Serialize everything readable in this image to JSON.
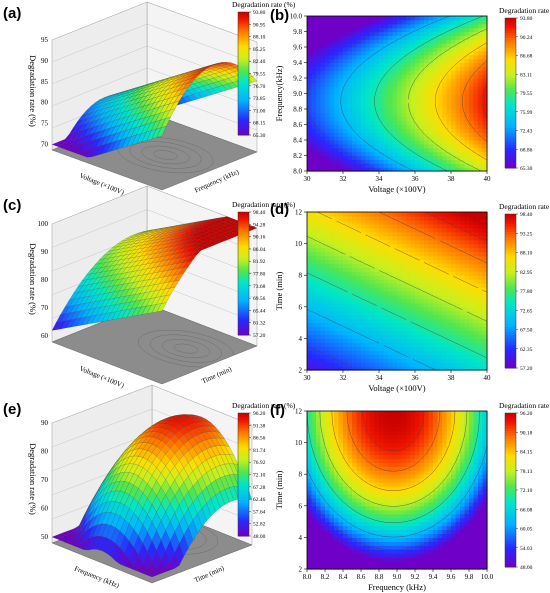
{
  "chart_data": [
    {
      "panel": "(a)",
      "type": "surface3d",
      "xlabel": "Voltage (×100V)",
      "ylabel": "Frequency (kHz)",
      "zlabel": "Degradation rate (%)",
      "zlim": [
        70,
        95
      ],
      "zticks": [
        "70",
        "75",
        "80",
        "85",
        "90",
        "95"
      ],
      "colorbar": {
        "title": "Degradation rate (%)",
        "ticks": [
          "93.80",
          "90.95",
          "88.10",
          "85.25",
          "82.40",
          "79.55",
          "76.70",
          "73.85",
          "71.00",
          "68.15",
          "65.30"
        ]
      }
    },
    {
      "panel": "(b)",
      "type": "contour",
      "xlabel": "Voltage (×100V)",
      "ylabel": "Frequency(kHz)",
      "xlim": [
        30,
        40
      ],
      "ylim": [
        8.0,
        10.0
      ],
      "xticks": [
        "30",
        "32",
        "34",
        "36",
        "38",
        "40"
      ],
      "yticks": [
        "8.0",
        "8.2",
        "8.4",
        "8.6",
        "8.8",
        "9.0",
        "9.2",
        "9.4",
        "9.6",
        "9.8",
        "10.0"
      ],
      "zrange": [
        65.3,
        93.8
      ],
      "colorbar": {
        "title": "Degradation rate (%)",
        "ticks": [
          "93.80",
          "90.24",
          "86.68",
          "83.11",
          "79.55",
          "75.99",
          "72.43",
          "68.86",
          "65.30"
        ]
      }
    },
    {
      "panel": "(c)",
      "type": "surface3d",
      "xlabel": "Voltage (×100V)",
      "ylabel": "Time (min)",
      "zlabel": "Degradation rate (%)",
      "zlim": [
        60,
        100
      ],
      "zticks": [
        "60",
        "70",
        "80",
        "90",
        "100"
      ],
      "colorbar": {
        "title": "Degradation rate (%)",
        "ticks": [
          "98.40",
          "94.28",
          "90.16",
          "86.04",
          "81.92",
          "77.80",
          "73.68",
          "69.56",
          "65.44",
          "61.32",
          "57.20"
        ]
      }
    },
    {
      "panel": "(d)",
      "type": "contour",
      "xlabel": "Voltage (×100V)",
      "ylabel": "Time (min)",
      "xlim": [
        30,
        40
      ],
      "ylim": [
        2,
        12
      ],
      "xticks": [
        "30",
        "32",
        "34",
        "36",
        "38",
        "40"
      ],
      "yticks": [
        "2",
        "4",
        "6",
        "8",
        "10",
        "12"
      ],
      "zrange": [
        57.2,
        98.4
      ],
      "colorbar": {
        "title": "Degradation rate (%)",
        "ticks": [
          "98.40",
          "93.25",
          "88.10",
          "82.95",
          "77.80",
          "72.65",
          "67.50",
          "62.35",
          "57.20"
        ]
      }
    },
    {
      "panel": "(e)",
      "type": "surface3d",
      "xlabel": "Frequency (kHz)",
      "ylabel": "Time (min)",
      "zlabel": "Degradation rate (%)",
      "zlim": [
        50,
        90
      ],
      "zticks": [
        "50",
        "60",
        "70",
        "80",
        "90"
      ],
      "colorbar": {
        "title": "Degradation rate (%)",
        "ticks": [
          "96.20",
          "91.38",
          "86.56",
          "81.74",
          "76.92",
          "72.10",
          "67.28",
          "62.46",
          "57.64",
          "52.82",
          "48.00"
        ]
      }
    },
    {
      "panel": "(f)",
      "type": "contour",
      "xlabel": "Frequency (kHz)",
      "ylabel": "Time (min)",
      "xlim": [
        8.0,
        10.0
      ],
      "ylim": [
        2,
        12
      ],
      "xticks": [
        "8.0",
        "8.2",
        "8.4",
        "8.6",
        "8.8",
        "9.0",
        "9.2",
        "9.4",
        "9.6",
        "9.8",
        "10.0"
      ],
      "yticks": [
        "2",
        "4",
        "6",
        "8",
        "10",
        "12"
      ],
      "zrange": [
        48.0,
        96.2
      ],
      "colorbar": {
        "title": "Degradation rate (%)",
        "ticks": [
          "96.20",
          "90.18",
          "84.15",
          "78.13",
          "72.10",
          "66.08",
          "60.05",
          "54.03",
          "48.00"
        ]
      }
    }
  ]
}
